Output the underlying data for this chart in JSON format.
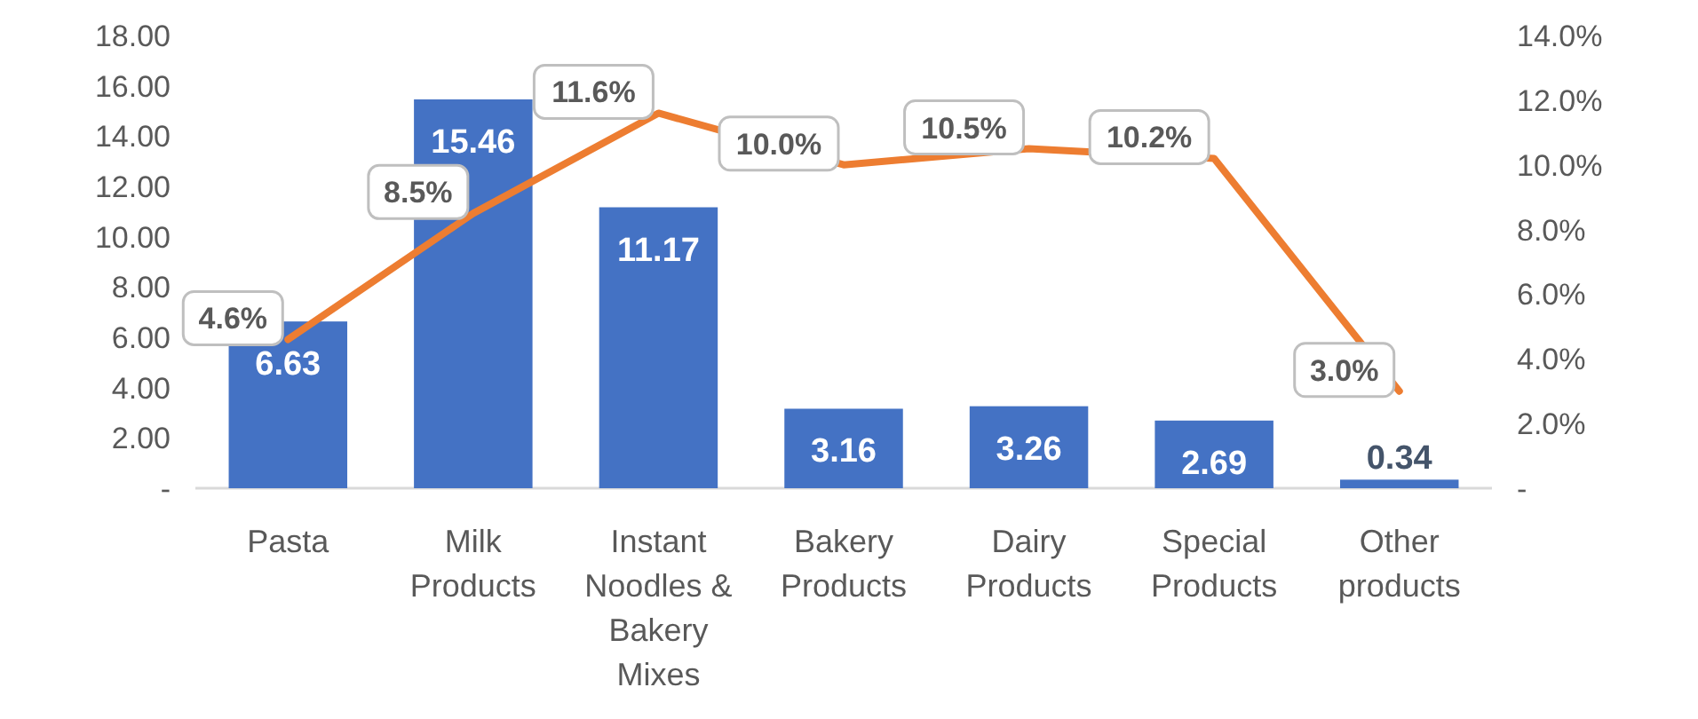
{
  "chart_data": {
    "type": "bar",
    "categories": [
      "Pasta",
      "Milk Products",
      "Instant Noodles & Bakery Mixes",
      "Bakery Products",
      "Dairy Products",
      "Special Products",
      "Other products"
    ],
    "series": [
      {
        "color": "#4472c4",
        "values": [
          6.63,
          15.46,
          11.17,
          3.16,
          3.26,
          2.69,
          0.34
        ],
        "value_labels": [
          "6.63",
          "15.46",
          "11.17",
          "3.16",
          "3.26",
          "2.69",
          "0.34"
        ]
      },
      {
        "type": "line",
        "axis": "y2",
        "color": "#ed7d31",
        "values": [
          4.6,
          8.5,
          11.6,
          10.0,
          10.5,
          10.2,
          3.0
        ],
        "value_labels": [
          "4.6%",
          "8.5%",
          "11.6%",
          "10.0%",
          "10.5%",
          "10.2%",
          "3.0%"
        ]
      }
    ],
    "ylim": [
      0,
      18
    ],
    "yticks": [
      {
        "value": 0,
        "label": "-"
      },
      {
        "value": 2,
        "label": "2.00"
      },
      {
        "value": 4,
        "label": "4.00"
      },
      {
        "value": 6,
        "label": "6.00"
      },
      {
        "value": 8,
        "label": "8.00"
      },
      {
        "value": 10,
        "label": "10.00"
      },
      {
        "value": 12,
        "label": "12.00"
      },
      {
        "value": 14,
        "label": "14.00"
      },
      {
        "value": 16,
        "label": "16.00"
      },
      {
        "value": 18,
        "label": "18.00"
      }
    ],
    "y2lim": [
      0,
      14
    ],
    "y2ticks": [
      {
        "value": 0,
        "label": "-"
      },
      {
        "value": 2,
        "label": "2.0%"
      },
      {
        "value": 4,
        "label": "4.0%"
      },
      {
        "value": 6,
        "label": "6.0%"
      },
      {
        "value": 8,
        "label": "8.0%"
      },
      {
        "value": 10,
        "label": "10.0%"
      },
      {
        "value": 12,
        "label": "12.0%"
      },
      {
        "value": 14,
        "label": "14.0%"
      }
    ],
    "grid": false
  }
}
